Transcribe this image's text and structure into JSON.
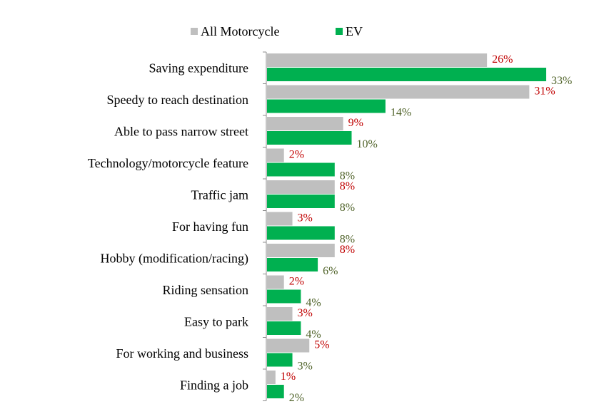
{
  "chart_data": {
    "type": "bar",
    "orientation": "horizontal",
    "categories": [
      "Saving expenditure",
      "Speedy to reach destination",
      "Able to pass narrow street",
      "Technology/motorcycle feature",
      "Traffic jam",
      "For having fun",
      "Hobby (modification/racing)",
      "Riding sensation",
      "Easy to park",
      "For working and business",
      "Finding a job"
    ],
    "series": [
      {
        "name": "All Motorcycle",
        "color": "#bfbfbf",
        "label_color": "#c00000",
        "values": [
          26,
          31,
          9,
          2,
          8,
          3,
          8,
          2,
          3,
          5,
          1
        ],
        "labels": [
          "26%",
          "31%",
          "9%",
          "2%",
          "8%",
          "3%",
          "8%",
          "2%",
          "3%",
          "5%",
          "1%"
        ]
      },
      {
        "name": "EV",
        "color": "#00b050",
        "label_color": "#4f6228",
        "values": [
          33,
          14,
          10,
          8,
          8,
          8,
          6,
          4,
          4,
          3,
          2
        ],
        "labels": [
          "33%",
          "14%",
          "10%",
          "8%",
          "8%",
          "8%",
          "6%",
          "4%",
          "4%",
          "3%",
          "2%"
        ]
      }
    ],
    "unit": "%",
    "xlim": [
      0,
      35
    ],
    "grid": false,
    "legend_position": "top"
  }
}
